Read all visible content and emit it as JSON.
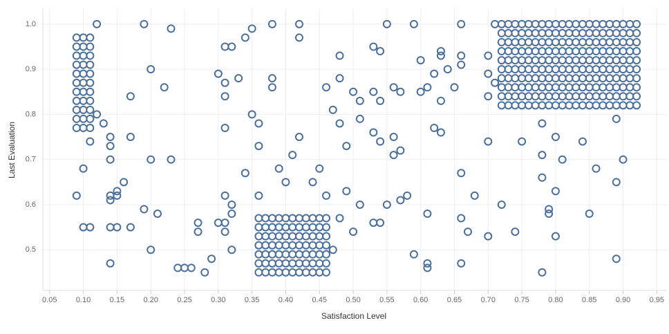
{
  "chart_data": {
    "type": "scatter",
    "x_label": "Satisfaction Level",
    "y_label": "Last Evaluation",
    "color": "#4a6f9c",
    "grid": true,
    "xlim": [
      0.04,
      0.965
    ],
    "ylim": [
      0.41,
      1.035
    ],
    "xticks": [
      {
        "value": 0.05,
        "label": "0.05"
      },
      {
        "value": 0.1,
        "label": "0.10"
      },
      {
        "value": 0.15,
        "label": "0.15"
      },
      {
        "value": 0.2,
        "label": "0.20"
      },
      {
        "value": 0.25,
        "label": "0.25"
      },
      {
        "value": 0.3,
        "label": "0.30"
      },
      {
        "value": 0.35,
        "label": "0.35"
      },
      {
        "value": 0.4,
        "label": "0.40"
      },
      {
        "value": 0.45,
        "label": "0.45"
      },
      {
        "value": 0.5,
        "label": "0.50"
      },
      {
        "value": 0.55,
        "label": "0.55"
      },
      {
        "value": 0.6,
        "label": "0.60"
      },
      {
        "value": 0.65,
        "label": "0.65"
      },
      {
        "value": 0.7,
        "label": "0.70"
      },
      {
        "value": 0.75,
        "label": "0.75"
      },
      {
        "value": 0.8,
        "label": "0.80"
      },
      {
        "value": 0.85,
        "label": "0.85"
      },
      {
        "value": 0.9,
        "label": "0.90"
      },
      {
        "value": 0.95,
        "label": "0.95"
      }
    ],
    "yticks": [
      0.5,
      0.6,
      0.7,
      0.8,
      0.9,
      {
        "value": 1.0,
        "label": "1.0"
      }
    ],
    "x": [
      0.09,
      0.1,
      0.11,
      0.09,
      0.1,
      0.11,
      0.09,
      0.1,
      0.11,
      0.09,
      0.1,
      0.11,
      0.09,
      0.1,
      0.11,
      0.09,
      0.1,
      0.11,
      0.09,
      0.1,
      0.11,
      0.09,
      0.1,
      0.11,
      0.09,
      0.1,
      0.11,
      0.09,
      0.1,
      0.11,
      0.09,
      0.1,
      0.11,
      0.36,
      0.37,
      0.38,
      0.39,
      0.4,
      0.41,
      0.42,
      0.43,
      0.44,
      0.45,
      0.46,
      0.36,
      0.37,
      0.38,
      0.39,
      0.4,
      0.41,
      0.42,
      0.43,
      0.44,
      0.45,
      0.46,
      0.36,
      0.37,
      0.38,
      0.39,
      0.4,
      0.41,
      0.42,
      0.43,
      0.44,
      0.45,
      0.46,
      0.36,
      0.37,
      0.38,
      0.39,
      0.4,
      0.41,
      0.42,
      0.43,
      0.44,
      0.45,
      0.46,
      0.36,
      0.37,
      0.38,
      0.39,
      0.4,
      0.41,
      0.42,
      0.43,
      0.44,
      0.45,
      0.46,
      0.36,
      0.37,
      0.38,
      0.39,
      0.4,
      0.41,
      0.42,
      0.43,
      0.44,
      0.45,
      0.46,
      0.36,
      0.37,
      0.38,
      0.39,
      0.4,
      0.41,
      0.42,
      0.43,
      0.44,
      0.45,
      0.46,
      0.72,
      0.73,
      0.74,
      0.75,
      0.76,
      0.77,
      0.78,
      0.79,
      0.8,
      0.81,
      0.82,
      0.83,
      0.84,
      0.85,
      0.86,
      0.87,
      0.88,
      0.89,
      0.9,
      0.91,
      0.92,
      0.72,
      0.73,
      0.74,
      0.75,
      0.76,
      0.77,
      0.78,
      0.79,
      0.8,
      0.81,
      0.82,
      0.83,
      0.84,
      0.85,
      0.86,
      0.87,
      0.88,
      0.89,
      0.9,
      0.91,
      0.92,
      0.72,
      0.73,
      0.74,
      0.75,
      0.76,
      0.77,
      0.78,
      0.79,
      0.8,
      0.81,
      0.82,
      0.83,
      0.84,
      0.85,
      0.86,
      0.87,
      0.88,
      0.89,
      0.9,
      0.91,
      0.92,
      0.72,
      0.73,
      0.74,
      0.75,
      0.76,
      0.77,
      0.78,
      0.79,
      0.8,
      0.81,
      0.82,
      0.83,
      0.84,
      0.85,
      0.86,
      0.87,
      0.88,
      0.89,
      0.9,
      0.91,
      0.92,
      0.72,
      0.73,
      0.74,
      0.75,
      0.76,
      0.77,
      0.78,
      0.79,
      0.8,
      0.81,
      0.82,
      0.83,
      0.84,
      0.85,
      0.86,
      0.87,
      0.88,
      0.89,
      0.9,
      0.91,
      0.92,
      0.72,
      0.73,
      0.74,
      0.75,
      0.76,
      0.77,
      0.78,
      0.79,
      0.8,
      0.81,
      0.82,
      0.83,
      0.84,
      0.85,
      0.86,
      0.87,
      0.88,
      0.89,
      0.9,
      0.91,
      0.92,
      0.72,
      0.73,
      0.74,
      0.75,
      0.76,
      0.77,
      0.78,
      0.79,
      0.8,
      0.81,
      0.82,
      0.83,
      0.84,
      0.85,
      0.86,
      0.87,
      0.88,
      0.89,
      0.9,
      0.91,
      0.92,
      0.72,
      0.73,
      0.74,
      0.75,
      0.76,
      0.77,
      0.78,
      0.79,
      0.8,
      0.81,
      0.82,
      0.83,
      0.84,
      0.85,
      0.86,
      0.87,
      0.88,
      0.89,
      0.9,
      0.91,
      0.92,
      0.72,
      0.73,
      0.74,
      0.75,
      0.76,
      0.77,
      0.78,
      0.79,
      0.8,
      0.81,
      0.82,
      0.83,
      0.84,
      0.85,
      0.86,
      0.87,
      0.88,
      0.89,
      0.9,
      0.91,
      0.92,
      0.72,
      0.73,
      0.74,
      0.75,
      0.76,
      0.77,
      0.78,
      0.79,
      0.8,
      0.81,
      0.82,
      0.83,
      0.84,
      0.85,
      0.86,
      0.87,
      0.88,
      0.89,
      0.9,
      0.91,
      0.92,
      0.09,
      0.1,
      0.1,
      0.11,
      0.11,
      0.12,
      0.12,
      0.13,
      0.14,
      0.14,
      0.14,
      0.14,
      0.14,
      0.14,
      0.14,
      0.15,
      0.15,
      0.15,
      0.16,
      0.17,
      0.17,
      0.17,
      0.19,
      0.19,
      0.2,
      0.2,
      0.2,
      0.21,
      0.22,
      0.23,
      0.23,
      0.24,
      0.25,
      0.26,
      0.27,
      0.27,
      0.28,
      0.29,
      0.3,
      0.3,
      0.31,
      0.31,
      0.31,
      0.31,
      0.31,
      0.31,
      0.31,
      0.32,
      0.32,
      0.32,
      0.32,
      0.33,
      0.34,
      0.34,
      0.35,
      0.35,
      0.36,
      0.36,
      0.36,
      0.38,
      0.38,
      0.38,
      0.39,
      0.4,
      0.41,
      0.42,
      0.42,
      0.42,
      0.44,
      0.45,
      0.46,
      0.46,
      0.47,
      0.47,
      0.48,
      0.48,
      0.48,
      0.48,
      0.49,
      0.49,
      0.5,
      0.5,
      0.51,
      0.51,
      0.51,
      0.53,
      0.53,
      0.53,
      0.53,
      0.54,
      0.54,
      0.54,
      0.54,
      0.55,
      0.55,
      0.56,
      0.56,
      0.56,
      0.57,
      0.57,
      0.57,
      0.58,
      0.59,
      0.59,
      0.6,
      0.6,
      0.61,
      0.61,
      0.61,
      0.61,
      0.62,
      0.62,
      0.63,
      0.63,
      0.63,
      0.63,
      0.64,
      0.65,
      0.66,
      0.66,
      0.66,
      0.66,
      0.66,
      0.66,
      0.67,
      0.68,
      0.7,
      0.7,
      0.7,
      0.7,
      0.7,
      0.71,
      0.71,
      0.72,
      0.74,
      0.75,
      0.78,
      0.78,
      0.78,
      0.78,
      0.79,
      0.79,
      0.8,
      0.8,
      0.8,
      0.81,
      0.84,
      0.85,
      0.86,
      0.89,
      0.89,
      0.89,
      0.9
    ],
    "values": [
      0.77,
      0.77,
      0.77,
      0.79,
      0.79,
      0.79,
      0.81,
      0.81,
      0.81,
      0.83,
      0.83,
      0.83,
      0.85,
      0.85,
      0.85,
      0.87,
      0.87,
      0.87,
      0.89,
      0.89,
      0.89,
      0.91,
      0.91,
      0.91,
      0.93,
      0.93,
      0.93,
      0.95,
      0.95,
      0.95,
      0.97,
      0.97,
      0.97,
      0.45,
      0.45,
      0.45,
      0.45,
      0.45,
      0.45,
      0.45,
      0.45,
      0.45,
      0.45,
      0.45,
      0.47,
      0.47,
      0.47,
      0.47,
      0.47,
      0.47,
      0.47,
      0.47,
      0.47,
      0.47,
      0.47,
      0.49,
      0.49,
      0.49,
      0.49,
      0.49,
      0.49,
      0.49,
      0.49,
      0.49,
      0.49,
      0.49,
      0.51,
      0.51,
      0.51,
      0.51,
      0.51,
      0.51,
      0.51,
      0.51,
      0.51,
      0.51,
      0.51,
      0.53,
      0.53,
      0.53,
      0.53,
      0.53,
      0.53,
      0.53,
      0.53,
      0.53,
      0.53,
      0.53,
      0.55,
      0.55,
      0.55,
      0.55,
      0.55,
      0.55,
      0.55,
      0.55,
      0.55,
      0.55,
      0.55,
      0.57,
      0.57,
      0.57,
      0.57,
      0.57,
      0.57,
      0.57,
      0.57,
      0.57,
      0.57,
      0.57,
      0.82,
      0.82,
      0.82,
      0.82,
      0.82,
      0.82,
      0.82,
      0.82,
      0.82,
      0.82,
      0.82,
      0.82,
      0.82,
      0.82,
      0.82,
      0.82,
      0.82,
      0.82,
      0.82,
      0.82,
      0.82,
      0.84,
      0.84,
      0.84,
      0.84,
      0.84,
      0.84,
      0.84,
      0.84,
      0.84,
      0.84,
      0.84,
      0.84,
      0.84,
      0.84,
      0.84,
      0.84,
      0.84,
      0.84,
      0.84,
      0.84,
      0.84,
      0.86,
      0.86,
      0.86,
      0.86,
      0.86,
      0.86,
      0.86,
      0.86,
      0.86,
      0.86,
      0.86,
      0.86,
      0.86,
      0.86,
      0.86,
      0.86,
      0.86,
      0.86,
      0.86,
      0.86,
      0.86,
      0.88,
      0.88,
      0.88,
      0.88,
      0.88,
      0.88,
      0.88,
      0.88,
      0.88,
      0.88,
      0.88,
      0.88,
      0.88,
      0.88,
      0.88,
      0.88,
      0.88,
      0.88,
      0.88,
      0.88,
      0.88,
      0.9,
      0.9,
      0.9,
      0.9,
      0.9,
      0.9,
      0.9,
      0.9,
      0.9,
      0.9,
      0.9,
      0.9,
      0.9,
      0.9,
      0.9,
      0.9,
      0.9,
      0.9,
      0.9,
      0.9,
      0.9,
      0.92,
      0.92,
      0.92,
      0.92,
      0.92,
      0.92,
      0.92,
      0.92,
      0.92,
      0.92,
      0.92,
      0.92,
      0.92,
      0.92,
      0.92,
      0.92,
      0.92,
      0.92,
      0.92,
      0.92,
      0.92,
      0.94,
      0.94,
      0.94,
      0.94,
      0.94,
      0.94,
      0.94,
      0.94,
      0.94,
      0.94,
      0.94,
      0.94,
      0.94,
      0.94,
      0.94,
      0.94,
      0.94,
      0.94,
      0.94,
      0.94,
      0.94,
      0.96,
      0.96,
      0.96,
      0.96,
      0.96,
      0.96,
      0.96,
      0.96,
      0.96,
      0.96,
      0.96,
      0.96,
      0.96,
      0.96,
      0.96,
      0.96,
      0.96,
      0.96,
      0.96,
      0.96,
      0.96,
      0.98,
      0.98,
      0.98,
      0.98,
      0.98,
      0.98,
      0.98,
      0.98,
      0.98,
      0.98,
      0.98,
      0.98,
      0.98,
      0.98,
      0.98,
      0.98,
      0.98,
      0.98,
      0.98,
      0.98,
      0.98,
      1.0,
      1.0,
      1.0,
      1.0,
      1.0,
      1.0,
      1.0,
      1.0,
      1.0,
      1.0,
      1.0,
      1.0,
      1.0,
      1.0,
      1.0,
      1.0,
      1.0,
      1.0,
      1.0,
      1.0,
      1.0,
      0.62,
      0.68,
      0.55,
      0.55,
      0.74,
      1.0,
      0.8,
      0.78,
      0.75,
      0.73,
      0.7,
      0.62,
      0.61,
      0.55,
      0.47,
      0.63,
      0.62,
      0.55,
      0.65,
      0.84,
      0.75,
      0.55,
      1.0,
      0.59,
      0.9,
      0.7,
      0.5,
      0.58,
      0.86,
      0.99,
      0.7,
      0.46,
      0.46,
      0.46,
      0.56,
      0.54,
      0.45,
      0.48,
      0.89,
      0.56,
      0.95,
      0.87,
      0.84,
      0.77,
      0.62,
      0.56,
      0.54,
      0.95,
      0.6,
      0.58,
      0.5,
      0.88,
      0.97,
      0.67,
      0.99,
      0.8,
      0.78,
      0.73,
      0.62,
      1.0,
      0.88,
      0.86,
      0.68,
      0.65,
      0.71,
      1.0,
      0.97,
      0.75,
      0.65,
      0.68,
      0.86,
      0.62,
      0.81,
      0.5,
      0.93,
      0.88,
      0.78,
      0.57,
      0.73,
      0.63,
      0.85,
      0.54,
      0.83,
      0.79,
      0.6,
      0.95,
      0.85,
      0.76,
      0.56,
      0.94,
      0.83,
      0.74,
      0.56,
      1.0,
      0.6,
      0.86,
      0.75,
      0.71,
      0.85,
      0.72,
      0.61,
      0.62,
      1.0,
      0.49,
      0.92,
      0.85,
      0.86,
      0.58,
      0.47,
      0.46,
      0.89,
      0.77,
      0.94,
      0.93,
      0.83,
      0.76,
      0.9,
      0.86,
      1.0,
      0.93,
      0.91,
      0.67,
      0.57,
      0.47,
      0.54,
      0.62,
      0.93,
      0.89,
      0.84,
      0.74,
      0.53,
      1.0,
      0.87,
      0.6,
      0.54,
      0.74,
      0.78,
      0.71,
      0.66,
      0.45,
      0.59,
      0.58,
      0.75,
      0.63,
      0.53,
      0.7,
      0.74,
      0.58,
      0.68,
      0.79,
      0.65,
      0.48,
      0.7
    ]
  }
}
